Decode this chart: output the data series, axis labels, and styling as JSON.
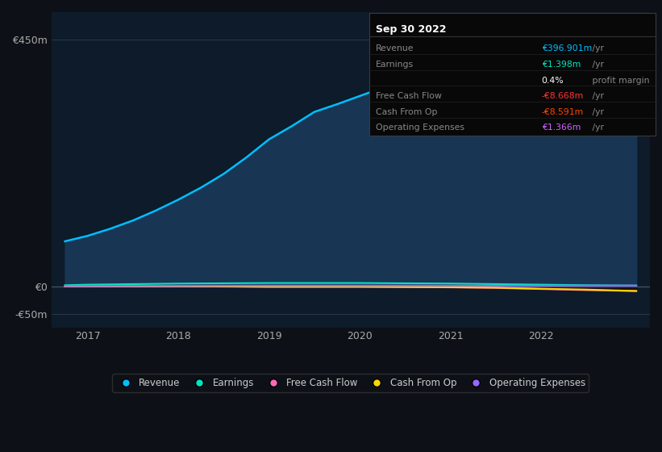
{
  "bg_color": "#0d1117",
  "plot_bg_color": "#0d1b2a",
  "title_box_date": "Sep 30 2022",
  "ylim": [
    -75000000,
    500000000
  ],
  "yticks": [
    450000000,
    0,
    -50000000
  ],
  "ytick_labels": [
    "€450m",
    "€0",
    "-€50m"
  ],
  "xlim_start": 2016.6,
  "xlim_end": 2023.2,
  "xtick_years": [
    2017,
    2018,
    2019,
    2020,
    2021,
    2022
  ],
  "legend_items": [
    {
      "label": "Revenue",
      "color": "#00bfff"
    },
    {
      "label": "Earnings",
      "color": "#00e5c0"
    },
    {
      "label": "Free Cash Flow",
      "color": "#ff69b4"
    },
    {
      "label": "Cash From Op",
      "color": "#ffd700"
    },
    {
      "label": "Operating Expenses",
      "color": "#9966ff"
    }
  ],
  "revenue_x": [
    2016.75,
    2017.0,
    2017.25,
    2017.5,
    2017.75,
    2018.0,
    2018.25,
    2018.5,
    2018.75,
    2019.0,
    2019.25,
    2019.5,
    2019.75,
    2020.0,
    2020.25,
    2020.5,
    2020.75,
    2021.0,
    2021.25,
    2021.5,
    2021.75,
    2022.0,
    2022.25,
    2022.5,
    2022.75,
    2023.05
  ],
  "revenue_y": [
    82000000,
    92000000,
    105000000,
    120000000,
    138000000,
    158000000,
    180000000,
    205000000,
    235000000,
    268000000,
    292000000,
    318000000,
    332000000,
    347000000,
    362000000,
    377000000,
    388000000,
    398000000,
    422000000,
    442000000,
    432000000,
    418000000,
    392000000,
    362000000,
    342000000,
    450000000
  ],
  "revenue_color": "#00bfff",
  "revenue_fill_color": "#1a3a5c",
  "earnings_x": [
    2016.75,
    2017.0,
    2017.5,
    2018.0,
    2018.5,
    2019.0,
    2019.5,
    2020.0,
    2020.5,
    2021.0,
    2021.5,
    2022.0,
    2022.5,
    2023.05
  ],
  "earnings_y": [
    2000000,
    3000000,
    4000000,
    5000000,
    5500000,
    6000000,
    6000000,
    6000000,
    5500000,
    5000000,
    4000000,
    3000000,
    2000000,
    1398000
  ],
  "earnings_color": "#00e5c0",
  "fcf_x": [
    2016.75,
    2017.5,
    2018.0,
    2018.5,
    2019.0,
    2019.5,
    2020.0,
    2020.5,
    2021.0,
    2021.5,
    2022.0,
    2022.5,
    2023.05
  ],
  "fcf_y": [
    0,
    0,
    0,
    -500000,
    -1000000,
    -1000000,
    -1000000,
    -1500000,
    -2000000,
    -3000000,
    -5000000,
    -7000000,
    -8668000
  ],
  "fcf_color": "#ff69b4",
  "cop_x": [
    2016.75,
    2017.5,
    2018.0,
    2018.5,
    2019.0,
    2019.5,
    2020.0,
    2020.5,
    2021.0,
    2021.5,
    2022.0,
    2022.5,
    2023.05
  ],
  "cop_y": [
    0,
    0,
    0,
    -300000,
    -800000,
    -800000,
    -800000,
    -1200000,
    -1800000,
    -2500000,
    -4500000,
    -6000000,
    -8591000
  ],
  "cop_color": "#ffd700",
  "opex_x": [
    2016.75,
    2017.5,
    2018.0,
    2018.5,
    2019.0,
    2019.5,
    2020.0,
    2020.5,
    2021.0,
    2021.5,
    2022.0,
    2022.5,
    2023.05
  ],
  "opex_y": [
    500000,
    800000,
    1000000,
    1200000,
    1300000,
    1300000,
    1300000,
    1300000,
    1200000,
    1100000,
    1000000,
    1200000,
    1366000
  ],
  "opex_color": "#9966ff"
}
